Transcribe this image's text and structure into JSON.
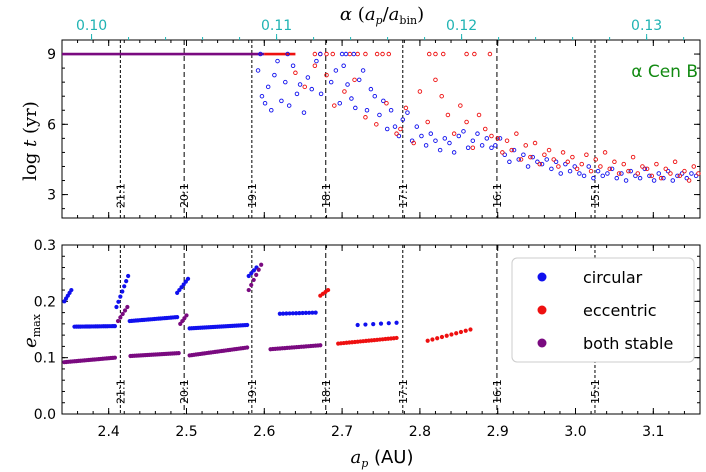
{
  "colors": {
    "circular": "#1010ee",
    "eccentric": "#ee1010",
    "both": "#7a0a80",
    "top_axis": "#1fb3b3",
    "annotation": "#128a12"
  },
  "chart_data": [
    {
      "id": "top",
      "type": "scatter",
      "ylabel": "log t (yr)",
      "xlim": [
        2.34,
        3.16
      ],
      "ylim": [
        2.0,
        9.6
      ],
      "yticks": [
        3,
        6,
        9
      ],
      "top_axis": {
        "label": "α (a_p/a_bin)",
        "ticks": [
          0.1,
          0.11,
          0.12,
          0.13
        ],
        "tick_labels": [
          "0.10",
          "0.11",
          "0.12",
          "0.13"
        ],
        "a_bin": 23.78
      },
      "annotation": "α Cen B",
      "resonances": [
        {
          "label": "21:1",
          "ap": 2.415
        },
        {
          "label": "20:1",
          "ap": 2.497
        },
        {
          "label": "19:1",
          "ap": 2.584
        },
        {
          "label": "18:1",
          "ap": 2.679
        },
        {
          "label": "17:1",
          "ap": 2.778
        },
        {
          "label": "16:1",
          "ap": 2.899
        },
        {
          "label": "15:1",
          "ap": 3.025
        }
      ],
      "series": [
        {
          "name": "both stable",
          "style": "line",
          "x": [
            2.34,
            2.6
          ],
          "y": [
            9.0,
            9.0
          ]
        },
        {
          "name": "eccentric",
          "style": "line",
          "x": [
            2.6,
            2.64
          ],
          "y": [
            9.0,
            9.0
          ]
        },
        {
          "name": "eccentric (t=9 pts)",
          "x": [
            2.665,
            2.672,
            2.68,
            2.688,
            2.71,
            2.72,
            2.73,
            2.745,
            2.752,
            2.76,
            2.812,
            2.82,
            2.83,
            2.86,
            2.87,
            2.89
          ],
          "y": [
            9,
            9,
            9,
            9,
            9,
            9,
            9,
            9,
            9,
            9,
            9,
            9,
            9,
            9,
            9,
            9
          ]
        },
        {
          "name": "circular (t=9 pts)",
          "x": [
            2.595,
            2.63,
            2.672,
            2.7,
            2.705,
            2.715
          ],
          "y": [
            9,
            9,
            9,
            9,
            9,
            9
          ]
        },
        {
          "name": "circular",
          "x": [
            2.592,
            2.597,
            2.601,
            2.605,
            2.609,
            2.613,
            2.617,
            2.622,
            2.627,
            2.632,
            2.637,
            2.642,
            2.646,
            2.651,
            2.656,
            2.661,
            2.667,
            2.673,
            2.686,
            2.692,
            2.697,
            2.702,
            2.707,
            2.712,
            2.717,
            2.722,
            2.727,
            2.732,
            2.737,
            2.742,
            2.748,
            2.753,
            2.758,
            2.763,
            2.768,
            2.773,
            2.778,
            2.784,
            2.79,
            2.796,
            2.802,
            2.808,
            2.814,
            2.82,
            2.826,
            2.832,
            2.838,
            2.844,
            2.85,
            2.856,
            2.862,
            2.868,
            2.874,
            2.88,
            2.886,
            2.892,
            2.897,
            2.903,
            2.909,
            2.915,
            2.921,
            2.927,
            2.933,
            2.939,
            2.945,
            2.951,
            2.957,
            2.963,
            2.969,
            2.975,
            2.981,
            2.987,
            2.993,
            2.999,
            3.005,
            3.011,
            3.017,
            3.023,
            3.029,
            3.035,
            3.041,
            3.047,
            3.053,
            3.059,
            3.065,
            3.071,
            3.077,
            3.083,
            3.089,
            3.095,
            3.101,
            3.107,
            3.113,
            3.119,
            3.125,
            3.131,
            3.137,
            3.143,
            3.149,
            3.155
          ],
          "y": [
            8.3,
            7.2,
            6.9,
            7.6,
            6.6,
            8.1,
            8.7,
            7.0,
            7.8,
            6.8,
            8.5,
            7.3,
            7.7,
            6.5,
            8.0,
            7.5,
            8.7,
            7.3,
            7.8,
            8.3,
            6.9,
            8.5,
            7.7,
            7.1,
            6.7,
            7.9,
            8.3,
            6.6,
            7.5,
            7.2,
            6.4,
            7.0,
            5.8,
            6.6,
            5.9,
            5.5,
            6.2,
            6.5,
            5.3,
            5.9,
            5.5,
            5.1,
            5.6,
            5.3,
            4.9,
            5.4,
            5.2,
            4.8,
            5.5,
            5.7,
            5.0,
            5.3,
            5.6,
            5.1,
            5.4,
            5.0,
            5.1,
            5.4,
            4.7,
            4.4,
            4.9,
            4.5,
            4.7,
            4.2,
            4.6,
            4.4,
            4.3,
            4.5,
            4.1,
            4.4,
            3.9,
            4.3,
            4.0,
            4.2,
            3.9,
            3.8,
            4.2,
            3.7,
            4.0,
            3.8,
            3.9,
            4.1,
            3.7,
            3.9,
            3.6,
            4.0,
            3.8,
            3.7,
            4.1,
            3.8,
            3.6,
            3.9,
            3.7,
            4.0,
            3.6,
            3.8,
            3.9,
            3.7,
            3.9,
            3.8
          ]
        },
        {
          "name": "eccentric",
          "x": [
            2.64,
            2.652,
            2.665,
            2.68,
            2.69,
            2.703,
            2.716,
            2.73,
            2.744,
            2.757,
            2.77,
            2.775,
            2.782,
            2.792,
            2.8,
            2.81,
            2.82,
            2.828,
            2.836,
            2.844,
            2.852,
            2.86,
            2.868,
            2.876,
            2.884,
            2.892,
            2.9,
            2.906,
            2.912,
            2.918,
            2.924,
            2.93,
            2.936,
            2.942,
            2.948,
            2.954,
            2.96,
            2.966,
            2.972,
            2.978,
            2.984,
            2.99,
            2.996,
            3.002,
            3.008,
            3.014,
            3.02,
            3.026,
            3.032,
            3.038,
            3.044,
            3.05,
            3.056,
            3.062,
            3.068,
            3.074,
            3.08,
            3.086,
            3.092,
            3.098,
            3.104,
            3.11,
            3.116,
            3.122,
            3.128,
            3.134,
            3.14,
            3.146,
            3.152,
            3.158
          ],
          "y": [
            8.2,
            7.6,
            8.5,
            8.1,
            6.8,
            7.4,
            7.9,
            6.3,
            6.0,
            6.9,
            5.6,
            5.8,
            6.7,
            5.2,
            7.4,
            6.1,
            7.9,
            7.2,
            6.4,
            5.6,
            6.8,
            6.1,
            5.0,
            6.4,
            5.8,
            5.5,
            5.4,
            4.8,
            5.3,
            4.9,
            5.6,
            4.5,
            5.1,
            4.6,
            5.2,
            4.3,
            4.7,
            4.9,
            4.5,
            4.2,
            4.8,
            4.4,
            4.6,
            4.1,
            4.3,
            4.7,
            4.0,
            4.5,
            4.2,
            4.8,
            4.1,
            4.4,
            3.9,
            4.3,
            4.0,
            4.6,
            3.9,
            4.2,
            4.1,
            3.8,
            4.3,
            3.7,
            4.1,
            3.9,
            4.4,
            3.8,
            4.0,
            3.6,
            4.2,
            3.9
          ]
        }
      ]
    },
    {
      "id": "bottom",
      "type": "scatter",
      "xlabel": "a_p (AU)",
      "ylabel": "e_max",
      "xlim": [
        2.34,
        3.16
      ],
      "ylim": [
        0.0,
        0.3
      ],
      "xticks": [
        2.4,
        2.5,
        2.6,
        2.7,
        2.8,
        2.9,
        3.0,
        3.1
      ],
      "xtick_labels": [
        "2.4",
        "2.5",
        "2.6",
        "2.7",
        "2.8",
        "2.9",
        "3.0",
        "3.1"
      ],
      "yticks": [
        0.0,
        0.1,
        0.2,
        0.3
      ],
      "ytick_labels": [
        "0.0",
        "0.1",
        "0.2",
        "0.3"
      ],
      "resonances": [
        {
          "label": "21:1",
          "ap": 2.415
        },
        {
          "label": "20:1",
          "ap": 2.497
        },
        {
          "label": "19:1",
          "ap": 2.584
        },
        {
          "label": "18:1",
          "ap": 2.679
        },
        {
          "label": "17:1",
          "ap": 2.778
        },
        {
          "label": "16:1",
          "ap": 2.899
        },
        {
          "label": "15:1",
          "ap": 3.025
        }
      ],
      "legend": {
        "position": "right",
        "entries": [
          {
            "label": "circular",
            "color_key": "circular"
          },
          {
            "label": "eccentric",
            "color_key": "eccentric"
          },
          {
            "label": "both stable",
            "color_key": "both"
          }
        ]
      },
      "series": [
        {
          "name": "circular",
          "segments": [
            {
              "x0": 2.343,
              "x1": 2.352,
              "y0": 0.2,
              "y1": 0.22,
              "n": 5
            },
            {
              "x0": 2.356,
              "x1": 2.408,
              "y0": 0.155,
              "y1": 0.156,
              "n": 22
            },
            {
              "x0": 2.41,
              "x1": 2.425,
              "y0": 0.19,
              "y1": 0.245,
              "n": 7
            },
            {
              "x0": 2.427,
              "x1": 2.488,
              "y0": 0.165,
              "y1": 0.172,
              "n": 24
            },
            {
              "x0": 2.488,
              "x1": 2.502,
              "y0": 0.215,
              "y1": 0.24,
              "n": 6
            },
            {
              "x0": 2.504,
              "x1": 2.578,
              "y0": 0.152,
              "y1": 0.158,
              "n": 28
            },
            {
              "x0": 2.58,
              "x1": 2.59,
              "y0": 0.245,
              "y1": 0.26,
              "n": 4
            },
            {
              "x0": 2.62,
              "x1": 2.666,
              "y0": 0.178,
              "y1": 0.18,
              "n": 12
            },
            {
              "x0": 2.72,
              "x1": 2.77,
              "y0": 0.158,
              "y1": 0.162,
              "n": 6
            }
          ]
        },
        {
          "name": "eccentric",
          "segments": [
            {
              "x0": 2.672,
              "x1": 2.682,
              "y0": 0.21,
              "y1": 0.22,
              "n": 4
            },
            {
              "x0": 2.695,
              "x1": 2.77,
              "y0": 0.125,
              "y1": 0.135,
              "n": 22
            },
            {
              "x0": 2.81,
              "x1": 2.865,
              "y0": 0.13,
              "y1": 0.15,
              "n": 10
            }
          ]
        },
        {
          "name": "both stable",
          "segments": [
            {
              "x0": 2.343,
              "x1": 2.408,
              "y0": 0.092,
              "y1": 0.1,
              "n": 26
            },
            {
              "x0": 2.412,
              "x1": 2.424,
              "y0": 0.165,
              "y1": 0.19,
              "n": 5
            },
            {
              "x0": 2.428,
              "x1": 2.49,
              "y0": 0.103,
              "y1": 0.108,
              "n": 24
            },
            {
              "x0": 2.492,
              "x1": 2.5,
              "y0": 0.16,
              "y1": 0.175,
              "n": 4
            },
            {
              "x0": 2.504,
              "x1": 2.578,
              "y0": 0.104,
              "y1": 0.118,
              "n": 28
            },
            {
              "x0": 2.58,
              "x1": 2.596,
              "y0": 0.22,
              "y1": 0.265,
              "n": 6
            },
            {
              "x0": 2.608,
              "x1": 2.672,
              "y0": 0.115,
              "y1": 0.122,
              "n": 22
            }
          ]
        }
      ]
    }
  ]
}
